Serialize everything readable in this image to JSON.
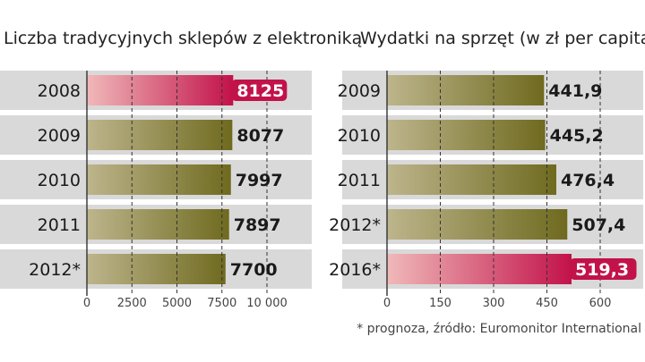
{
  "chart_data": [
    {
      "type": "bar",
      "orientation": "horizontal",
      "title": "Liczba tradycyjnych sklepów z elektroniką",
      "categories": [
        "2008",
        "2009",
        "2010",
        "2011",
        "2012*"
      ],
      "values": [
        8125,
        8077,
        7997,
        7897,
        7700
      ],
      "value_labels": [
        "8125",
        "8077",
        "7997",
        "7897",
        "7700"
      ],
      "highlight_index": 0,
      "xlim": [
        0,
        10000
      ],
      "ticks": [
        0,
        2500,
        5000,
        7500,
        10000
      ],
      "tick_labels": [
        "0",
        "2500",
        "5000",
        "7500",
        "10 000"
      ],
      "grid": true
    },
    {
      "type": "bar",
      "orientation": "horizontal",
      "title": "Wydatki na sprzęt (w zł per capita)",
      "categories": [
        "2009",
        "2010",
        "2011",
        "2012*",
        "2016*"
      ],
      "values": [
        441.9,
        445.2,
        476.4,
        507.4,
        519.3
      ],
      "value_labels": [
        "441,9",
        "445,2",
        "476,4",
        "507,4",
        "519,3"
      ],
      "highlight_index": 4,
      "xlim": [
        0,
        600
      ],
      "ticks": [
        0,
        150,
        300,
        450,
        600
      ],
      "tick_labels": [
        "0",
        "150",
        "300",
        "450",
        "600"
      ],
      "grid": true
    }
  ],
  "footnote": "* prognoza, źródło: Euromonitor International",
  "colors": {
    "row_bg": "#d9d9d9",
    "bar_dark": "#6f6a1f",
    "bar_light": "#bdb58c",
    "highlight_dark": "#c2124a",
    "highlight_light": "#f0b9b9",
    "grid": "#333333"
  }
}
